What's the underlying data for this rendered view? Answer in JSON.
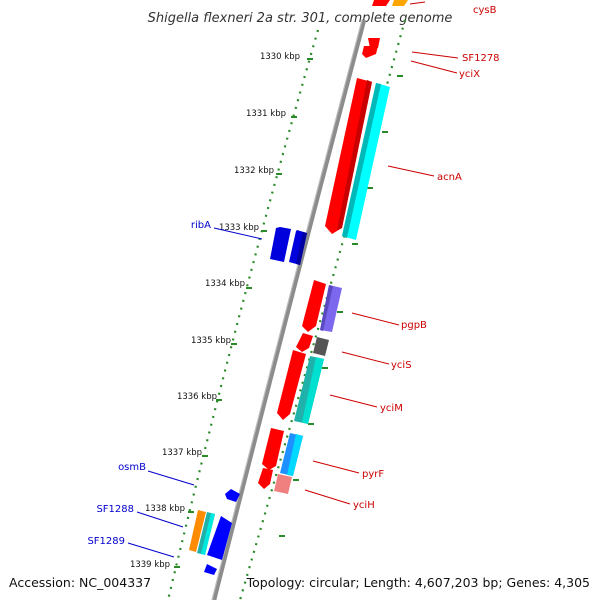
{
  "title": "Shigella flexneri 2a str. 301, complete genome",
  "footer": {
    "accession": "Accession: NC_004337",
    "topology": "Topology: circular; Length: 4,607,203 bp; Genes: 4,305"
  },
  "colors": {
    "forward_label": "#cc0000",
    "reverse_label": "#0000cc",
    "backbone": "#8c8c8c",
    "tick": "#2a8a2a"
  },
  "kbp_labels": [
    "1330 kbp",
    "1331 kbp",
    "1332 kbp",
    "1333 kbp",
    "1334 kbp",
    "1335 kbp",
    "1336 kbp",
    "1337 kbp",
    "1338 kbp",
    "1339 kbp"
  ],
  "gene_labels": {
    "cysB": "cysB",
    "SF1278": "SF1278",
    "yciX": "yciX",
    "acnA": "acnA",
    "ribA": "ribA",
    "pgpB": "pgpB",
    "yciS": "yciS",
    "yciM": "yciM",
    "osmB": "osmB",
    "pyrF": "pyrF",
    "yciH": "yciH",
    "SF1288": "SF1288",
    "SF1289": "SF1289"
  }
}
